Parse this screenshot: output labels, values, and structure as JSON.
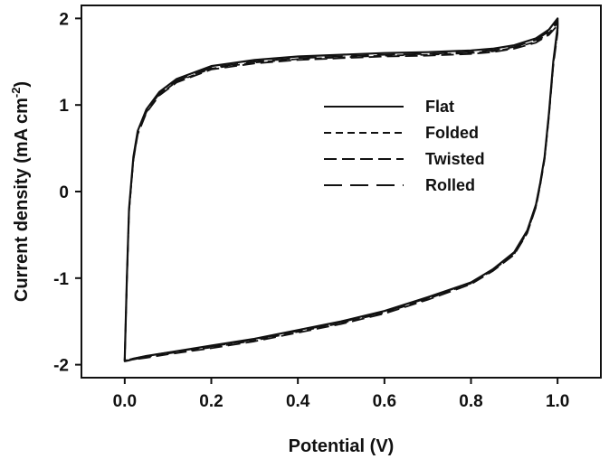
{
  "chart_data": {
    "type": "line",
    "xlabel": "Potential (V)",
    "ylabel_main": "Current density (mA cm",
    "ylabel_sup": "-2",
    "ylabel_tail": ")",
    "xlim": [
      -0.1,
      1.1
    ],
    "ylim": [
      -2.15,
      2.15
    ],
    "xticks": [
      0.0,
      0.2,
      0.4,
      0.6,
      0.8,
      1.0
    ],
    "xtick_labels": [
      "0.0",
      "0.2",
      "0.4",
      "0.6",
      "0.8",
      "1.0"
    ],
    "yticks": [
      -2,
      -1,
      0,
      1,
      2
    ],
    "ytick_labels": [
      "-2",
      "-1",
      "0",
      "1",
      "2"
    ],
    "legend_position": "center-right",
    "grid": false,
    "series": [
      {
        "name": "Flat",
        "dash": "solid",
        "x": [
          0.0,
          0.005,
          0.01,
          0.02,
          0.03,
          0.05,
          0.08,
          0.12,
          0.2,
          0.3,
          0.4,
          0.5,
          0.6,
          0.7,
          0.8,
          0.85,
          0.9,
          0.95,
          0.98,
          1.0,
          1.0,
          0.99,
          0.98,
          0.97,
          0.96,
          0.95,
          0.93,
          0.9,
          0.85,
          0.8,
          0.7,
          0.6,
          0.5,
          0.4,
          0.3,
          0.2,
          0.1,
          0.05,
          0.02,
          0.01,
          0.0,
          0.0
        ],
        "y": [
          -1.95,
          -1.0,
          -0.2,
          0.4,
          0.7,
          0.95,
          1.15,
          1.3,
          1.45,
          1.52,
          1.56,
          1.58,
          1.6,
          1.61,
          1.63,
          1.65,
          1.69,
          1.77,
          1.87,
          2.0,
          1.9,
          1.5,
          0.9,
          0.4,
          0.1,
          -0.15,
          -0.45,
          -0.7,
          -0.9,
          -1.05,
          -1.22,
          -1.38,
          -1.5,
          -1.6,
          -1.7,
          -1.78,
          -1.86,
          -1.9,
          -1.93,
          -1.95,
          -1.96,
          -1.95
        ]
      },
      {
        "name": "Folded",
        "dash": "short",
        "x": [
          0.0,
          0.005,
          0.01,
          0.02,
          0.03,
          0.05,
          0.08,
          0.12,
          0.2,
          0.3,
          0.4,
          0.5,
          0.6,
          0.7,
          0.8,
          0.85,
          0.9,
          0.95,
          0.98,
          1.0,
          1.0,
          0.99,
          0.98,
          0.97,
          0.96,
          0.95,
          0.93,
          0.9,
          0.85,
          0.8,
          0.7,
          0.6,
          0.5,
          0.4,
          0.3,
          0.2,
          0.1,
          0.05,
          0.02,
          0.01,
          0.0
        ],
        "y": [
          -1.95,
          -1.02,
          -0.22,
          0.37,
          0.67,
          0.92,
          1.12,
          1.27,
          1.42,
          1.49,
          1.53,
          1.55,
          1.57,
          1.58,
          1.6,
          1.62,
          1.66,
          1.73,
          1.83,
          1.95,
          1.86,
          1.47,
          0.88,
          0.38,
          0.08,
          -0.17,
          -0.47,
          -0.72,
          -0.91,
          -1.06,
          -1.24,
          -1.4,
          -1.52,
          -1.62,
          -1.72,
          -1.8,
          -1.87,
          -1.91,
          -1.94,
          -1.95,
          -1.95
        ]
      },
      {
        "name": "Twisted",
        "dash": "medium",
        "x": [
          0.0,
          0.005,
          0.01,
          0.02,
          0.03,
          0.05,
          0.08,
          0.12,
          0.2,
          0.3,
          0.4,
          0.5,
          0.6,
          0.7,
          0.8,
          0.85,
          0.9,
          0.95,
          0.98,
          1.0,
          1.0,
          0.99,
          0.98,
          0.97,
          0.96,
          0.95,
          0.93,
          0.9,
          0.85,
          0.8,
          0.7,
          0.6,
          0.5,
          0.4,
          0.3,
          0.2,
          0.1,
          0.05,
          0.02,
          0.01,
          0.0
        ],
        "y": [
          -1.95,
          -1.03,
          -0.23,
          0.36,
          0.66,
          0.91,
          1.11,
          1.26,
          1.41,
          1.48,
          1.52,
          1.54,
          1.56,
          1.57,
          1.59,
          1.61,
          1.65,
          1.72,
          1.81,
          1.92,
          1.83,
          1.45,
          0.86,
          0.37,
          0.07,
          -0.18,
          -0.48,
          -0.73,
          -0.92,
          -1.07,
          -1.25,
          -1.41,
          -1.53,
          -1.63,
          -1.73,
          -1.81,
          -1.88,
          -1.92,
          -1.94,
          -1.95,
          -1.95
        ]
      },
      {
        "name": "Rolled",
        "dash": "long",
        "x": [
          0.0,
          0.005,
          0.01,
          0.02,
          0.03,
          0.05,
          0.08,
          0.12,
          0.2,
          0.3,
          0.4,
          0.5,
          0.6,
          0.7,
          0.8,
          0.85,
          0.9,
          0.95,
          0.98,
          1.0,
          1.0,
          0.99,
          0.98,
          0.97,
          0.96,
          0.95,
          0.93,
          0.9,
          0.85,
          0.8,
          0.7,
          0.6,
          0.5,
          0.4,
          0.3,
          0.2,
          0.1,
          0.05,
          0.02,
          0.01,
          0.0
        ],
        "y": [
          -1.95,
          -1.01,
          -0.21,
          0.38,
          0.68,
          0.93,
          1.13,
          1.28,
          1.43,
          1.5,
          1.54,
          1.56,
          1.58,
          1.59,
          1.61,
          1.63,
          1.67,
          1.75,
          1.85,
          1.97,
          1.88,
          1.48,
          0.89,
          0.39,
          0.09,
          -0.16,
          -0.46,
          -0.71,
          -0.9,
          -1.05,
          -1.23,
          -1.39,
          -1.51,
          -1.61,
          -1.71,
          -1.79,
          -1.86,
          -1.9,
          -1.93,
          -1.94,
          -1.95
        ]
      }
    ]
  }
}
